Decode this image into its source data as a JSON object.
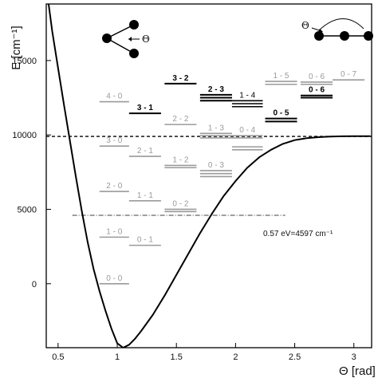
{
  "chart_data": {
    "type": "line",
    "xlabel": "Θ [rad]",
    "ylabel": "E [cm⁻¹]",
    "xlim": [
      0.4,
      3.15
    ],
    "ylim": [
      -4300,
      18800
    ],
    "xticks": [
      0.5,
      1,
      1.5,
      2,
      2.5,
      3
    ],
    "yticks": [
      0,
      5000,
      10000,
      15000
    ],
    "potential_curve": {
      "x": [
        0.4,
        0.45,
        0.5,
        0.55,
        0.6,
        0.65,
        0.7,
        0.75,
        0.8,
        0.85,
        0.9,
        0.95,
        1.0,
        1.05,
        1.1,
        1.15,
        1.2,
        1.3,
        1.4,
        1.5,
        1.6,
        1.7,
        1.8,
        1.9,
        2.0,
        2.1,
        2.2,
        2.3,
        2.4,
        2.5,
        2.6,
        2.7,
        2.8,
        2.9,
        3.0,
        3.1,
        3.14
      ],
      "y": [
        20000,
        17000,
        14500,
        12000,
        9600,
        7200,
        4900,
        2800,
        1000,
        -500,
        -1800,
        -3000,
        -4000,
        -4300,
        -4100,
        -3700,
        -3200,
        -2100,
        -800,
        600,
        2000,
        3400,
        4700,
        5900,
        6900,
        7800,
        8500,
        9000,
        9400,
        9650,
        9780,
        9850,
        9890,
        9910,
        9920,
        9920,
        9920
      ]
    },
    "reference_lines": [
      {
        "label": "",
        "y": 9900,
        "style": "dashed"
      },
      {
        "label": "0.57 eV=4597 cm⁻¹",
        "y": 4597,
        "style": "dash-dot",
        "x_range": [
          0.62,
          2.42
        ]
      }
    ],
    "levels": [
      {
        "label": "0 - 0",
        "x_range": [
          0.85,
          1.1
        ],
        "energies": [
          0
        ],
        "color": "#9a9a9a",
        "bold": false
      },
      {
        "label": "1 - 0",
        "x_range": [
          0.85,
          1.1
        ],
        "energies": [
          3130
        ],
        "color": "#9a9a9a",
        "bold": false
      },
      {
        "label": "2 - 0",
        "x_range": [
          0.85,
          1.1
        ],
        "energies": [
          6200
        ],
        "color": "#9a9a9a",
        "bold": false
      },
      {
        "label": "3 - 0",
        "x_range": [
          0.85,
          1.1
        ],
        "energies": [
          9250
        ],
        "color": "#9a9a9a",
        "bold": false
      },
      {
        "label": "4 - 0",
        "x_range": [
          0.85,
          1.1
        ],
        "energies": [
          12230
        ],
        "color": "#9a9a9a",
        "bold": false
      },
      {
        "label": "0 - 1",
        "x_range": [
          1.1,
          1.37
        ],
        "energies": [
          2580
        ],
        "color": "#9a9a9a",
        "bold": false
      },
      {
        "label": "1 - 1",
        "x_range": [
          1.1,
          1.37
        ],
        "energies": [
          5570
        ],
        "color": "#9a9a9a",
        "bold": false
      },
      {
        "label": "2 - 1",
        "x_range": [
          1.1,
          1.37
        ],
        "energies": [
          8560
        ],
        "color": "#9a9a9a",
        "bold": false
      },
      {
        "label": "3 - 1",
        "x_range": [
          1.1,
          1.37
        ],
        "energies": [
          11450
        ],
        "color": "#000000",
        "bold": true
      },
      {
        "label": "0 - 2",
        "x_range": [
          1.4,
          1.67
        ],
        "energies": [
          4850,
          5000
        ],
        "color": "#9a9a9a",
        "bold": false
      },
      {
        "label": "1 - 2",
        "x_range": [
          1.4,
          1.67
        ],
        "energies": [
          7800,
          7950
        ],
        "color": "#9a9a9a",
        "bold": false
      },
      {
        "label": "2 - 2",
        "x_range": [
          1.4,
          1.67
        ],
        "energies": [
          10700
        ],
        "color": "#9a9a9a",
        "bold": false
      },
      {
        "label": "3 - 2",
        "x_range": [
          1.4,
          1.67
        ],
        "energies": [
          13450
        ],
        "color": "#000000",
        "bold": true
      },
      {
        "label": "0 - 3",
        "x_range": [
          1.7,
          1.97
        ],
        "energies": [
          7200,
          7400,
          7600
        ],
        "color": "#9a9a9a",
        "bold": false
      },
      {
        "label": "1 - 3",
        "x_range": [
          1.7,
          1.97
        ],
        "energies": [
          9800,
          9950,
          10100
        ],
        "color": "#9a9a9a",
        "bold": false
      },
      {
        "label": "2 - 3",
        "x_range": [
          1.7,
          1.97
        ],
        "energies": [
          12300,
          12500,
          12700
        ],
        "color": "#000000",
        "bold": true
      },
      {
        "label": "0 - 4",
        "x_range": [
          1.97,
          2.23
        ],
        "energies": [
          9000,
          9200,
          9800,
          9950
        ],
        "color": "#9a9a9a",
        "bold": false
      },
      {
        "label": "1 - 4",
        "x_range": [
          1.97,
          2.23
        ],
        "energies": [
          11900,
          12100,
          12300
        ],
        "color": "#000000",
        "bold": false
      },
      {
        "label": "0 - 5",
        "x_range": [
          2.25,
          2.52
        ],
        "energies": [
          10900,
          11100
        ],
        "color": "#000000",
        "bold": true
      },
      {
        "label": "1 - 5",
        "x_range": [
          2.25,
          2.52
        ],
        "energies": [
          13400,
          13600
        ],
        "color": "#9a9a9a",
        "bold": false
      },
      {
        "label": "0 - 6",
        "x_range": [
          2.55,
          2.82
        ],
        "energies": [
          12500,
          12650
        ],
        "color": "#000000",
        "bold": true
      },
      {
        "label": "0 - 6",
        "x_range": [
          2.55,
          2.82
        ],
        "energies": [
          13400,
          13550
        ],
        "color": "#9a9a9a",
        "bold": false
      },
      {
        "label": "0 - 7",
        "x_range": [
          2.82,
          3.09
        ],
        "energies": [
          13700
        ],
        "color": "#9a9a9a",
        "bold": false
      }
    ],
    "insets": [
      {
        "shape": "bent",
        "label": "Θ"
      },
      {
        "shape": "linear",
        "label": "Θ"
      }
    ]
  }
}
